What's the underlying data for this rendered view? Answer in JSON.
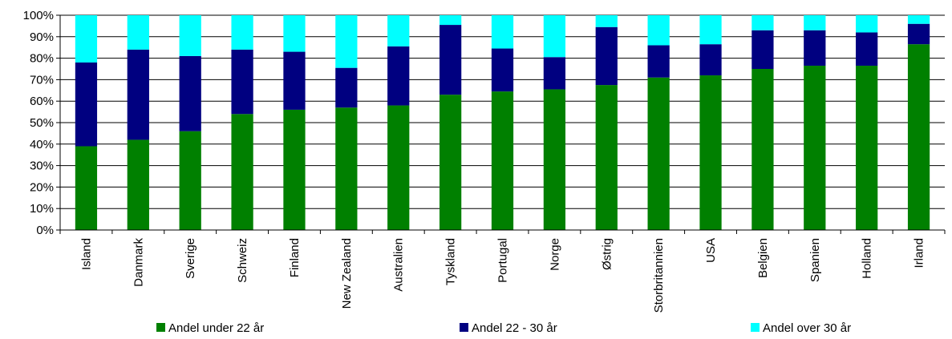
{
  "chart_data": {
    "type": "bar",
    "stacked": true,
    "categories": [
      "Island",
      "Danmark",
      "Sverige",
      "Schweiz",
      "Finland",
      "New Zealand",
      "Australien",
      "Tyskland",
      "Portugal",
      "Norge",
      "Østrig",
      "Storbritannien",
      "USA",
      "Belgien",
      "Spanien",
      "Holland",
      "Irland"
    ],
    "series": [
      {
        "name": "Andel under 22 år",
        "color": "#008000",
        "values": [
          39,
          42,
          46,
          54,
          56,
          57,
          58,
          63,
          64.5,
          65.5,
          67.5,
          71,
          72,
          75,
          76.5,
          76.5,
          86.5
        ]
      },
      {
        "name": "Andel 22 - 30 år",
        "color": "#000080",
        "values": [
          39,
          42,
          35,
          30,
          27,
          18.5,
          27.5,
          32.5,
          20,
          15,
          27,
          15,
          14.5,
          18,
          16.5,
          15.5,
          9.5
        ]
      },
      {
        "name": "Andel over 30 år",
        "color": "#00FFFF",
        "values": [
          22,
          16,
          19,
          16,
          17,
          24.5,
          14.5,
          4.5,
          15.5,
          19.5,
          5.5,
          14,
          13.5,
          7,
          7,
          8,
          4
        ]
      }
    ],
    "yticks": [
      "0%",
      "10%",
      "20%",
      "30%",
      "40%",
      "50%",
      "60%",
      "70%",
      "80%",
      "90%",
      "100%"
    ],
    "ylim": [
      0,
      100
    ],
    "grid": true,
    "legend_position": "bottom"
  }
}
